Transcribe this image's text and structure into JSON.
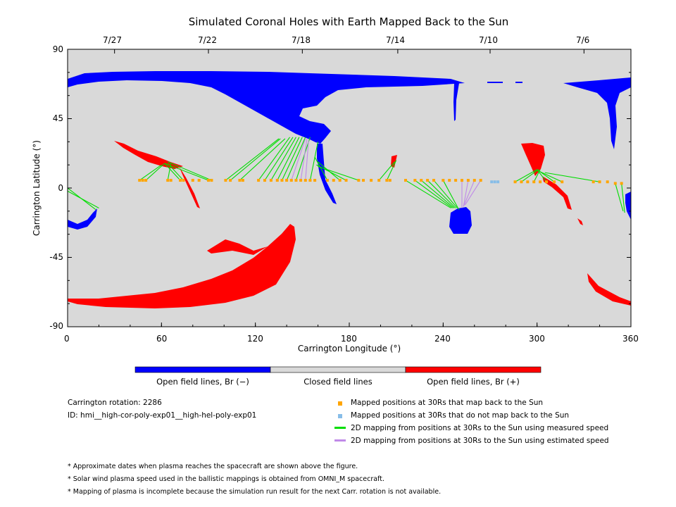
{
  "chart_data": {
    "type": "scatter",
    "title": "Simulated Coronal Holes with Earth Mapped Back to the Sun",
    "xlabel": "Carrington Longitude (°)",
    "ylabel": "Carrington Latitude (°)",
    "xlim": [
      0,
      360
    ],
    "ylim": [
      -90,
      90
    ],
    "x_ticks": [
      "0",
      "60",
      "120",
      "180",
      "240",
      "300",
      "360"
    ],
    "y_ticks": [
      "90",
      "45",
      "0",
      "-45",
      "-90"
    ],
    "top_date_ticks": [
      {
        "label": "7/27",
        "lon": 30
      },
      {
        "label": "7/22",
        "lon": 90
      },
      {
        "label": "7/18",
        "lon": 150
      },
      {
        "label": "7/14",
        "lon": 211
      },
      {
        "label": "7/10",
        "lon": 270
      },
      {
        "label": "7/6",
        "lon": 330
      }
    ],
    "colorbar": [
      {
        "label": "Open field lines, Br (−)",
        "color": "#0000ff"
      },
      {
        "label": "Closed field lines",
        "color": "#d9d9d9"
      },
      {
        "label": "Open field lines, Br (+)",
        "color": "#ff0000"
      }
    ],
    "series": [
      {
        "name": "Mapped positions at 30Rs that map back to the Sun",
        "color": "#ffa500",
        "points": [
          [
            46,
            5
          ],
          [
            48,
            5
          ],
          [
            50,
            5
          ],
          [
            64,
            5
          ],
          [
            66,
            5
          ],
          [
            72,
            5
          ],
          [
            74,
            5
          ],
          [
            80,
            5
          ],
          [
            84,
            5
          ],
          [
            90,
            5
          ],
          [
            92,
            5
          ],
          [
            101,
            5
          ],
          [
            104,
            5
          ],
          [
            110,
            5
          ],
          [
            112,
            5
          ],
          [
            122,
            5
          ],
          [
            126,
            5
          ],
          [
            130,
            5
          ],
          [
            134,
            5
          ],
          [
            137,
            5
          ],
          [
            140,
            5
          ],
          [
            143,
            5
          ],
          [
            146,
            5
          ],
          [
            149,
            5
          ],
          [
            152,
            5
          ],
          [
            155,
            5
          ],
          [
            158,
            5
          ],
          [
            166,
            5
          ],
          [
            170,
            5
          ],
          [
            174,
            5
          ],
          [
            178,
            5
          ],
          [
            186,
            5
          ],
          [
            189,
            5
          ],
          [
            194,
            5
          ],
          [
            199,
            5
          ],
          [
            204,
            5
          ],
          [
            206,
            5
          ],
          [
            216,
            5
          ],
          [
            222,
            5
          ],
          [
            226,
            5
          ],
          [
            230,
            5
          ],
          [
            234,
            5
          ],
          [
            240,
            5
          ],
          [
            244,
            5
          ],
          [
            248,
            5
          ],
          [
            252,
            5
          ],
          [
            256,
            5
          ],
          [
            260,
            5
          ],
          [
            264,
            5
          ],
          [
            286,
            4
          ],
          [
            290,
            4
          ],
          [
            294,
            4
          ],
          [
            298,
            4
          ],
          [
            302,
            4
          ],
          [
            306,
            4
          ],
          [
            311,
            4
          ],
          [
            316,
            4
          ],
          [
            336,
            4
          ],
          [
            340,
            4
          ],
          [
            345,
            4
          ],
          [
            350,
            3
          ],
          [
            354,
            3
          ]
        ]
      },
      {
        "name": "Mapped positions at 30Rs that do not map back to the Sun",
        "color": "#87bde8",
        "points": [
          [
            271,
            4
          ],
          [
            273,
            4
          ],
          [
            275,
            4
          ]
        ]
      },
      {
        "name": "2D mapping from positions at 30Rs to the Sun using measured speed",
        "color": "#00dd00",
        "segments": [
          [
            [
              0,
              0
            ],
            [
              18,
              -14
            ]
          ],
          [
            [
              0,
              -2
            ],
            [
              20,
              -13
            ]
          ],
          [
            [
              46,
              5
            ],
            [
              60,
              15
            ]
          ],
          [
            [
              50,
              5
            ],
            [
              62,
              16
            ]
          ],
          [
            [
              64,
              5
            ],
            [
              66,
              16
            ]
          ],
          [
            [
              72,
              5
            ],
            [
              62,
              16
            ]
          ],
          [
            [
              74,
              5
            ],
            [
              64,
              16
            ]
          ],
          [
            [
              90,
              5
            ],
            [
              62,
              16
            ]
          ],
          [
            [
              92,
              5
            ],
            [
              64,
              17
            ]
          ],
          [
            [
              101,
              5
            ],
            [
              135,
              32
            ]
          ],
          [
            [
              104,
              5
            ],
            [
              136,
              32
            ]
          ],
          [
            [
              110,
              5
            ],
            [
              139,
              32
            ]
          ],
          [
            [
              122,
              5
            ],
            [
              142,
              33
            ]
          ],
          [
            [
              126,
              5
            ],
            [
              144,
              33
            ]
          ],
          [
            [
              130,
              5
            ],
            [
              146,
              33
            ]
          ],
          [
            [
              134,
              5
            ],
            [
              148,
              33
            ]
          ],
          [
            [
              137,
              5
            ],
            [
              150,
              33
            ]
          ],
          [
            [
              140,
              5
            ],
            [
              152,
              33
            ]
          ],
          [
            [
              146,
              5
            ],
            [
              155,
              33
            ]
          ],
          [
            [
              155,
              5
            ],
            [
              160,
              30
            ]
          ],
          [
            [
              166,
              5
            ],
            [
              158,
              20
            ]
          ],
          [
            [
              174,
              5
            ],
            [
              160,
              17
            ]
          ],
          [
            [
              178,
              5
            ],
            [
              159,
              15
            ]
          ],
          [
            [
              186,
              5
            ],
            [
              160,
              14
            ]
          ],
          [
            [
              199,
              5
            ],
            [
              209,
              17
            ]
          ],
          [
            [
              204,
              5
            ],
            [
              210,
              18
            ]
          ],
          [
            [
              216,
              5
            ],
            [
              245,
              -13
            ]
          ],
          [
            [
              222,
              5
            ],
            [
              246,
              -13
            ]
          ],
          [
            [
              226,
              5
            ],
            [
              247,
              -13
            ]
          ],
          [
            [
              230,
              5
            ],
            [
              248,
              -13
            ]
          ],
          [
            [
              234,
              5
            ],
            [
              249,
              -13
            ]
          ],
          [
            [
              240,
              5
            ],
            [
              250,
              -14
            ]
          ],
          [
            [
              286,
              4
            ],
            [
              300,
              12
            ]
          ],
          [
            [
              290,
              4
            ],
            [
              301,
              12
            ]
          ],
          [
            [
              298,
              4
            ],
            [
              302,
              12
            ]
          ],
          [
            [
              306,
              4
            ],
            [
              300,
              12
            ]
          ],
          [
            [
              311,
              4
            ],
            [
              300,
              12
            ]
          ],
          [
            [
              316,
              4
            ],
            [
              301,
              11
            ]
          ],
          [
            [
              340,
              4
            ],
            [
              305,
              10
            ]
          ],
          [
            [
              350,
              3
            ],
            [
              355,
              -15
            ]
          ],
          [
            [
              354,
              3
            ],
            [
              356,
              -16
            ]
          ]
        ]
      },
      {
        "name": "2D mapping from positions at 30Rs to the Sun using estimated speed",
        "color": "#c08ae8",
        "segments": [
          [
            [
              143,
              5
            ],
            [
              152,
              32
            ]
          ],
          [
            [
              149,
              5
            ],
            [
              153,
              32
            ]
          ],
          [
            [
              152,
              5
            ],
            [
              154,
              31
            ]
          ],
          [
            [
              252,
              5
            ],
            [
              252,
              -13
            ]
          ],
          [
            [
              256,
              5
            ],
            [
              253,
              -12
            ]
          ],
          [
            [
              260,
              5
            ],
            [
              253,
              -12
            ]
          ],
          [
            [
              264,
              5
            ],
            [
              254,
              -11
            ]
          ]
        ]
      }
    ]
  },
  "info": {
    "rotation": "Carrington rotation: 2286",
    "id": "ID: hmi__high-cor-poly-exp01__high-hel-poly-exp01"
  },
  "legend": [
    {
      "label": "Mapped positions at 30Rs that map back to the Sun",
      "color": "#ffa500",
      "kind": "square"
    },
    {
      "label": "Mapped positions at 30Rs that do not map back to the Sun",
      "color": "#87bde8",
      "kind": "square"
    },
    {
      "label": "2D mapping from positions at 30Rs to the Sun using measured speed",
      "color": "#00dd00",
      "kind": "line"
    },
    {
      "label": "2D mapping from positions at 30Rs to the Sun using estimated speed",
      "color": "#c08ae8",
      "kind": "line"
    }
  ],
  "notes": [
    "* Approximate dates when plasma reaches the spacecraft are shown above the figure.",
    "* Solar wind plasma speed used in the ballistic mappings is obtained from OMNI_M spacecraft.",
    "* Mapping of plasma is incomplete because the simulation run result for the next Carr. rotation is not available."
  ]
}
